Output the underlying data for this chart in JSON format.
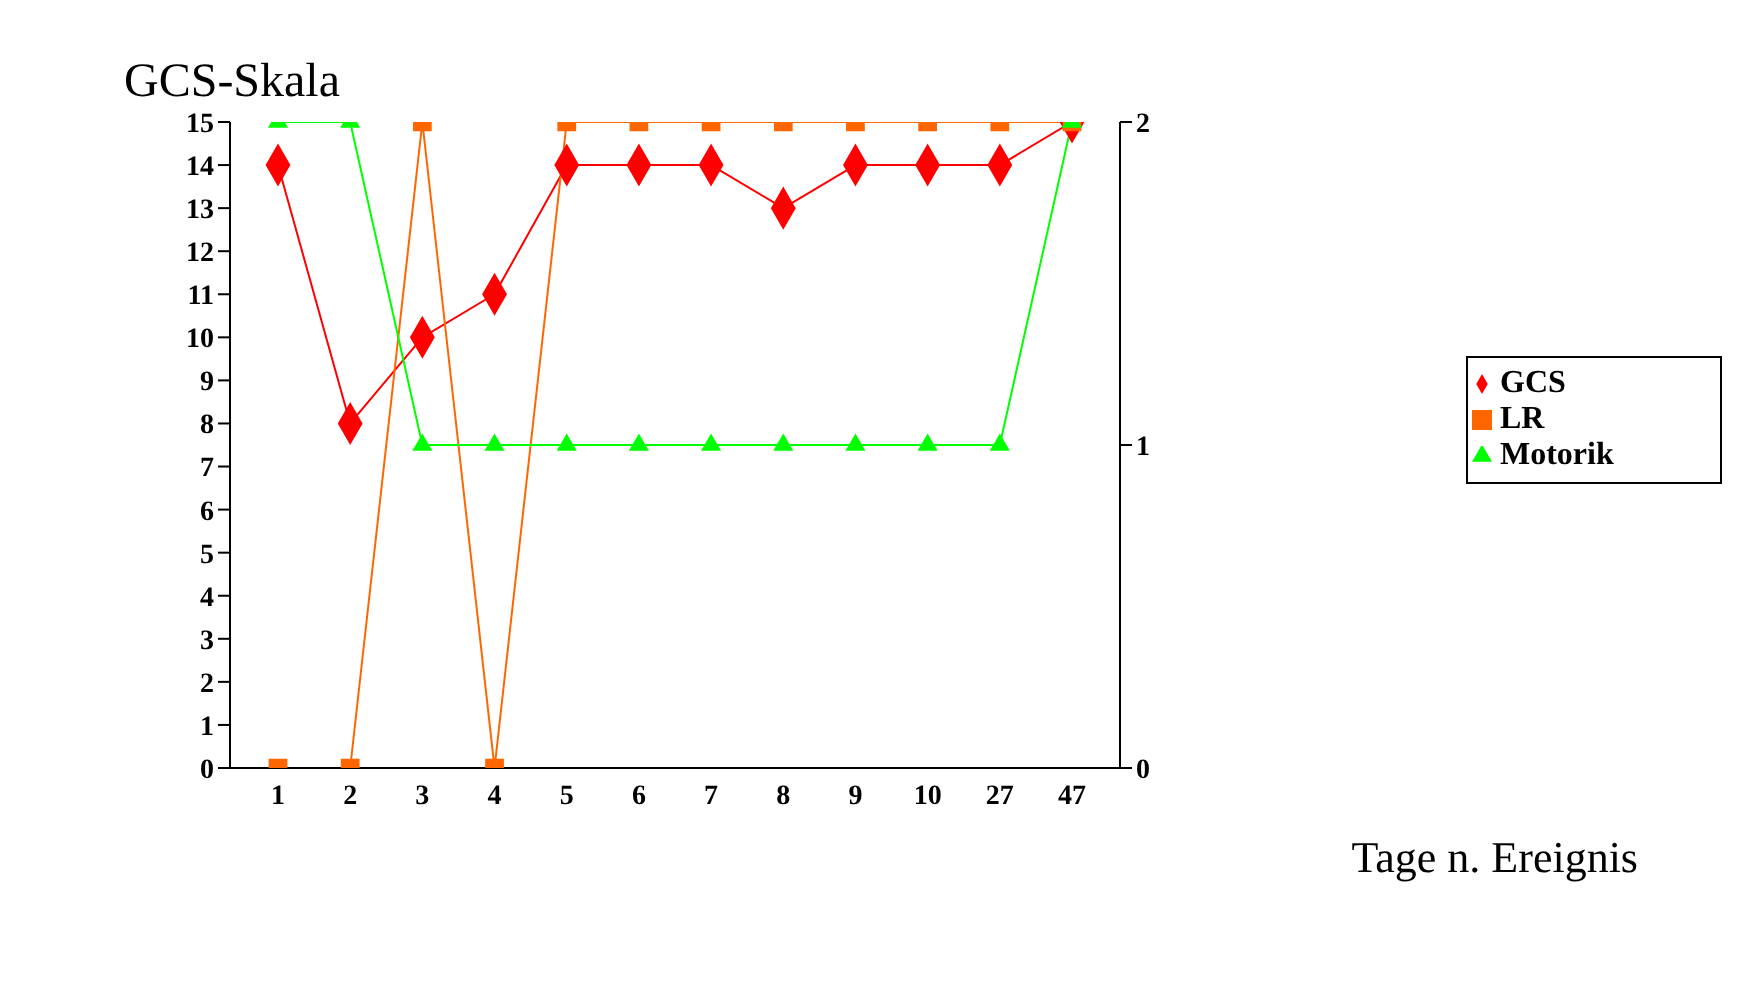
{
  "chart_data": {
    "type": "line",
    "title": "GCS-Skala",
    "xlabel": "Tage n. Ereignis",
    "categories": [
      "1",
      "2",
      "3",
      "4",
      "5",
      "6",
      "7",
      "8",
      "9",
      "10",
      "27",
      "47"
    ],
    "series": [
      {
        "name": "GCS",
        "color": "#ff0000",
        "marker": "diamond",
        "values": [
          14,
          8,
          10,
          11,
          14,
          14,
          14,
          13,
          14,
          14,
          14,
          15
        ]
      },
      {
        "name": "LR",
        "color": "#ff6600",
        "marker": "square",
        "axis": "y2",
        "values": [
          0,
          0,
          2,
          0,
          2,
          2,
          2,
          2,
          2,
          2,
          2,
          2
        ]
      },
      {
        "name": "Motorik",
        "color": "#00ff00",
        "marker": "triangle",
        "axis": "y2",
        "values": [
          2,
          2,
          1,
          1,
          1,
          1,
          1,
          1,
          1,
          1,
          1,
          2
        ]
      }
    ],
    "ylim": [
      0,
      15
    ],
    "yticks": [
      0,
      1,
      2,
      3,
      4,
      5,
      6,
      7,
      8,
      9,
      10,
      11,
      12,
      13,
      14,
      15
    ],
    "y2lim": [
      0,
      2
    ],
    "y2ticks": [
      0,
      1,
      2
    ],
    "grid": false,
    "legend": "right"
  }
}
